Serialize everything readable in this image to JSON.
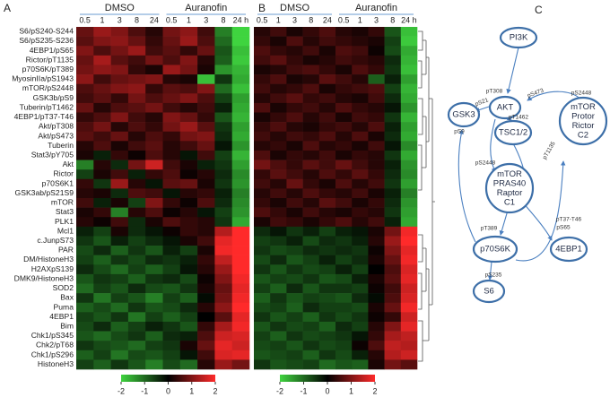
{
  "chart_data": [
    {
      "type": "heatmap",
      "panel_label": "A",
      "groups": [
        "DMSO",
        "Auranofin"
      ],
      "columns": [
        [
          "0.5",
          "1",
          "3",
          "8",
          "24"
        ],
        [
          "0.5",
          "1",
          "3",
          "8",
          "24 h"
        ]
      ],
      "rows": [
        "S6/pS240-S244",
        "S6/pS235-S236",
        "4EBP1/pS65",
        "Rictor/pT1135",
        "p70S6K/pT389",
        "MyosinIIa/pS1943",
        "mTOR/pS2448",
        "GSK3b/pS9",
        "Tuberin/pT1462",
        "4EBP1/pT37-T46",
        "Akt/pT308",
        "Akt/pS473",
        "Tuberin",
        "Stat3/pY705",
        "Akt",
        "Rictor",
        "p70S6K1",
        "GSK3ab/pS21S9",
        "mTOR",
        "Stat3",
        "PLK1",
        "Mcl1",
        "c.JunpS73",
        "PAR",
        "DM/HistoneH3",
        "H2AXpS139",
        "DMK9/HistoneH3",
        "SOD2",
        "Bax",
        "Puma",
        "4EBP1",
        "Bim",
        "Chk1/pS345",
        "Chk2/pT68",
        "Chk1/pS296",
        "HistoneH3"
      ],
      "values": [
        [
          0.8,
          1.2,
          1.0,
          0.6,
          0.3,
          0.9,
          1.1,
          0.5,
          -1.2,
          -2
        ],
        [
          0.7,
          1.0,
          1.1,
          0.8,
          0.4,
          0.8,
          1.2,
          0.6,
          -1.0,
          -2
        ],
        [
          1.0,
          0.6,
          0.9,
          1.2,
          0.5,
          0.7,
          0.4,
          0.8,
          -0.8,
          -1.8
        ],
        [
          0.8,
          1.3,
          0.7,
          0.5,
          0.9,
          0.6,
          1.0,
          0.3,
          -0.9,
          -1.9
        ],
        [
          0.9,
          1.1,
          1.0,
          0.4,
          0.2,
          1.2,
          0.9,
          0.2,
          -1.4,
          -1.7
        ],
        [
          1.1,
          0.5,
          0.8,
          0.9,
          1.0,
          0.3,
          0.2,
          -1.8,
          -0.5,
          -1.6
        ],
        [
          0.6,
          0.8,
          1.0,
          1.1,
          0.4,
          0.7,
          0.6,
          1.0,
          -1.0,
          -1.8
        ],
        [
          0.5,
          0.7,
          0.4,
          0.9,
          0.6,
          0.8,
          1.0,
          0.6,
          -0.6,
          -1.5
        ],
        [
          0.8,
          0.3,
          0.6,
          0.7,
          0.9,
          0.5,
          0.3,
          0.5,
          -0.3,
          -1.6
        ],
        [
          0.4,
          0.6,
          1.0,
          0.5,
          0.3,
          1.0,
          0.8,
          0.4,
          -0.8,
          -1.7
        ],
        [
          0.6,
          0.9,
          0.3,
          0.6,
          0.4,
          0.9,
          1.2,
          0.7,
          -0.5,
          -1.5
        ],
        [
          0.7,
          0.5,
          0.8,
          0.3,
          0.6,
          0.4,
          0.9,
          1.0,
          -0.4,
          -1.6
        ],
        [
          0.3,
          0.6,
          0.2,
          0.5,
          0.7,
          0.3,
          0.5,
          0.8,
          -0.2,
          -1.4
        ],
        [
          0.2,
          -0.3,
          0.4,
          0.1,
          0.6,
          0.3,
          -0.2,
          0.5,
          -0.6,
          -1.7
        ],
        [
          -1.2,
          0.3,
          -0.4,
          0.9,
          1.6,
          0.5,
          0.2,
          -0.3,
          -0.5,
          -1.5
        ],
        [
          -0.6,
          0.2,
          0.5,
          -0.3,
          0.4,
          0.6,
          0.1,
          0.3,
          -0.4,
          -1.3
        ],
        [
          0.4,
          -0.5,
          1.2,
          0.3,
          -0.2,
          0.7,
          0.8,
          0.2,
          -0.5,
          -1.4
        ],
        [
          0.3,
          0.2,
          -0.4,
          0.6,
          0.5,
          -0.2,
          0.3,
          0.4,
          -0.3,
          -1.2
        ],
        [
          0.5,
          -0.3,
          0.2,
          -0.6,
          1.0,
          0.4,
          0.1,
          0.6,
          -0.4,
          -1.3
        ],
        [
          0.2,
          0.4,
          -1.2,
          0.3,
          0.6,
          0.1,
          0.3,
          -0.2,
          -0.6,
          -1.4
        ],
        [
          0.3,
          0.1,
          0.5,
          -0.4,
          0.2,
          0.6,
          0.4,
          0.3,
          -0.5,
          -1.6
        ],
        [
          -0.3,
          -0.6,
          0.2,
          -0.4,
          -0.2,
          0.1,
          0.4,
          0.3,
          1.4,
          2
        ],
        [
          -0.5,
          -0.8,
          -0.3,
          -0.6,
          -0.4,
          -0.2,
          0.2,
          0.5,
          1.8,
          2
        ],
        [
          -0.7,
          -0.4,
          -0.9,
          -0.5,
          -0.8,
          -0.3,
          -0.6,
          0.2,
          1.9,
          2
        ],
        [
          -0.6,
          -0.9,
          -0.5,
          -0.7,
          -0.4,
          -0.5,
          -0.3,
          0.4,
          1.5,
          2
        ],
        [
          -0.4,
          -0.7,
          -1.0,
          -0.6,
          -0.9,
          -0.6,
          -0.2,
          0.3,
          1.2,
          2
        ],
        [
          -0.8,
          -0.5,
          -0.6,
          -0.9,
          -0.5,
          -0.4,
          -0.7,
          0.1,
          1.0,
          1.9
        ],
        [
          -1.0,
          -0.6,
          -0.8,
          -0.4,
          -0.7,
          -0.8,
          -0.5,
          0.2,
          0.8,
          1.8
        ],
        [
          -0.5,
          -1.1,
          -0.6,
          -0.8,
          -1.2,
          -0.6,
          -0.9,
          -0.1,
          0.9,
          1.9
        ],
        [
          -0.9,
          -0.7,
          -1.0,
          -0.5,
          -0.8,
          -0.7,
          -0.4,
          0.3,
          1.1,
          2
        ],
        [
          -0.6,
          -0.8,
          -0.5,
          -1.1,
          -0.6,
          -0.9,
          -0.6,
          0.0,
          0.7,
          1.8
        ],
        [
          -0.7,
          -0.4,
          -0.9,
          -0.6,
          -0.3,
          -0.5,
          -0.8,
          0.4,
          1.3,
          1.9
        ],
        [
          -0.8,
          -1.0,
          -0.7,
          -0.5,
          -0.9,
          -0.4,
          -0.3,
          0.6,
          1.6,
          1.7
        ],
        [
          -0.5,
          -0.7,
          -0.8,
          -1.0,
          -0.6,
          -0.5,
          0.2,
          0.8,
          1.8,
          1.6
        ],
        [
          -0.9,
          -0.6,
          -1.1,
          -0.7,
          -0.8,
          -0.6,
          -0.2,
          0.5,
          1.7,
          1.8
        ],
        [
          -0.6,
          -0.9,
          -0.5,
          -0.8,
          -1.2,
          -0.7,
          -1.0,
          0.3,
          1.2,
          0.9
        ]
      ],
      "clim": [
        -2,
        2
      ],
      "colors": [
        "#3fd43f",
        "#000000",
        "#ff2a2a"
      ],
      "colorbar_ticks": [
        -2,
        -1,
        0,
        1,
        2
      ]
    },
    {
      "type": "heatmap",
      "panel_label": "B",
      "groups": [
        "DMSO",
        "Auranofin"
      ],
      "columns": [
        [
          "0.5",
          "1",
          "3",
          "8",
          "24"
        ],
        [
          "0.5",
          "1",
          "3",
          "8",
          "24 h"
        ]
      ],
      "values": [
        [
          0.3,
          0.5,
          0.2,
          0.4,
          0.6,
          0.3,
          0.2,
          0.4,
          -0.8,
          -1.8
        ],
        [
          0.4,
          0.2,
          0.6,
          0.3,
          0.5,
          0.4,
          0.3,
          0.2,
          -0.6,
          -1.9
        ],
        [
          0.6,
          0.4,
          0.3,
          0.5,
          0.2,
          0.6,
          0.5,
          0.1,
          -0.7,
          -1.6
        ],
        [
          0.5,
          0.7,
          0.4,
          0.2,
          0.3,
          0.5,
          0.4,
          0.3,
          -0.4,
          -1.7
        ],
        [
          0.2,
          0.3,
          0.5,
          0.6,
          0.4,
          0.2,
          0.6,
          0.4,
          -0.5,
          -1.8
        ],
        [
          0.4,
          0.6,
          0.2,
          0.3,
          0.7,
          0.5,
          0.3,
          -0.9,
          -0.3,
          -1.5
        ],
        [
          0.5,
          0.3,
          0.4,
          0.6,
          0.2,
          0.4,
          0.5,
          0.6,
          -0.6,
          -1.7
        ],
        [
          0.3,
          0.5,
          0.7,
          0.4,
          0.5,
          0.3,
          0.2,
          0.5,
          -0.4,
          -1.6
        ],
        [
          0.6,
          0.2,
          0.4,
          0.5,
          0.3,
          0.6,
          0.4,
          0.3,
          -0.2,
          -1.4
        ],
        [
          0.2,
          0.4,
          0.6,
          0.3,
          0.5,
          0.2,
          0.5,
          0.4,
          -0.5,
          -1.7
        ],
        [
          0.4,
          0.6,
          0.3,
          0.2,
          0.4,
          0.5,
          0.3,
          0.6,
          -0.3,
          -1.5
        ],
        [
          0.5,
          0.3,
          0.5,
          0.4,
          0.6,
          0.3,
          0.6,
          0.2,
          -0.4,
          -1.6
        ],
        [
          0.3,
          0.4,
          0.2,
          0.6,
          0.3,
          0.4,
          0.2,
          0.5,
          -0.2,
          -1.3
        ],
        [
          0.6,
          0.2,
          0.4,
          0.3,
          0.5,
          0.2,
          0.4,
          0.3,
          -0.5,
          -1.6
        ],
        [
          0.9,
          0.6,
          0.4,
          0.7,
          0.5,
          0.8,
          0.5,
          0.3,
          -0.3,
          -1.4
        ],
        [
          0.4,
          0.7,
          0.5,
          0.3,
          0.6,
          0.4,
          0.7,
          0.4,
          -0.4,
          -1.3
        ],
        [
          0.5,
          0.3,
          0.8,
          0.4,
          0.2,
          0.6,
          0.3,
          0.5,
          -0.5,
          -1.5
        ],
        [
          0.3,
          0.5,
          0.3,
          0.6,
          0.4,
          0.3,
          0.5,
          0.2,
          -0.3,
          -1.2
        ],
        [
          0.4,
          0.2,
          0.5,
          0.3,
          0.7,
          0.5,
          0.2,
          0.4,
          -0.4,
          -1.4
        ],
        [
          0.6,
          0.4,
          0.2,
          0.5,
          0.3,
          0.2,
          0.4,
          0.3,
          -0.5,
          -1.5
        ],
        [
          0.2,
          0.5,
          0.4,
          0.2,
          0.4,
          0.6,
          0.3,
          0.5,
          -0.3,
          -1.6
        ],
        [
          -0.4,
          -0.2,
          -0.5,
          -0.3,
          -0.6,
          -0.3,
          -0.2,
          0.2,
          0.9,
          1.9
        ],
        [
          -0.6,
          -0.5,
          -0.3,
          -0.7,
          -0.4,
          -0.5,
          -0.3,
          0.3,
          1.2,
          2
        ],
        [
          -0.5,
          -0.7,
          -0.6,
          -0.4,
          -0.5,
          -0.4,
          -0.5,
          0.1,
          1.0,
          1.8
        ],
        [
          -0.7,
          -0.4,
          -0.8,
          -0.6,
          -0.3,
          -0.6,
          -0.4,
          0.2,
          0.8,
          1.9
        ],
        [
          -0.5,
          -0.8,
          -0.5,
          -0.7,
          -0.6,
          -0.3,
          -0.6,
          0.0,
          0.6,
          1.7
        ],
        [
          -0.8,
          -0.6,
          -0.7,
          -0.5,
          -0.8,
          -0.7,
          -0.3,
          0.2,
          0.7,
          1.8
        ],
        [
          -0.6,
          -0.9,
          -0.4,
          -0.8,
          -0.5,
          -0.5,
          -0.6,
          0.1,
          0.5,
          1.6
        ],
        [
          -0.9,
          -0.5,
          -0.8,
          -0.6,
          -0.7,
          -0.8,
          -0.4,
          -0.1,
          0.6,
          1.7
        ],
        [
          -0.7,
          -0.6,
          -0.9,
          -0.4,
          -0.6,
          -0.6,
          -0.7,
          0.2,
          0.8,
          1.9
        ],
        [
          -0.5,
          -0.8,
          -0.6,
          -0.9,
          -0.5,
          -0.7,
          -0.5,
          0.1,
          0.4,
          1.6
        ],
        [
          -0.8,
          -0.5,
          -0.7,
          -0.6,
          -0.9,
          -0.4,
          -0.6,
          0.3,
          1.0,
          1.8
        ],
        [
          -0.6,
          -0.9,
          -0.5,
          -0.7,
          -0.6,
          -0.5,
          -0.2,
          0.4,
          1.3,
          1.5
        ],
        [
          -0.7,
          -0.6,
          -0.8,
          -0.5,
          -0.7,
          -0.6,
          0.1,
          0.6,
          1.5,
          1.4
        ],
        [
          -0.8,
          -0.7,
          -0.6,
          -0.9,
          -0.5,
          -0.7,
          -0.3,
          0.3,
          1.4,
          1.6
        ],
        [
          -0.5,
          -0.8,
          -0.7,
          -0.6,
          -1.0,
          -0.8,
          -0.9,
          0.2,
          0.9,
          0.7
        ]
      ],
      "clim": [
        -2,
        2
      ],
      "colors": [
        "#3fd43f",
        "#000000",
        "#ff2a2a"
      ],
      "colorbar_ticks": [
        -2,
        -1,
        0,
        1,
        2
      ]
    }
  ],
  "diagram": {
    "panel_label": "C",
    "nodes": [
      [
        "PI3K"
      ],
      [
        "AKT"
      ],
      [
        "GSK3"
      ],
      [
        "TSC1/2"
      ],
      [
        "mTOR",
        "Protor",
        "Rictor",
        "C2"
      ],
      [
        "mTOR",
        "PRAS40",
        "Raptor",
        "C1"
      ],
      [
        "p70S6K"
      ],
      [
        "4EBP1"
      ],
      [
        "S6"
      ]
    ],
    "edge_labels": [
      "pT308",
      "pS473",
      "pS21",
      "pS9",
      "pT1462",
      "pS2448",
      "pS2448",
      "pT1135",
      "pT389",
      "pT37-T46",
      "pS65",
      "pS235"
    ]
  }
}
